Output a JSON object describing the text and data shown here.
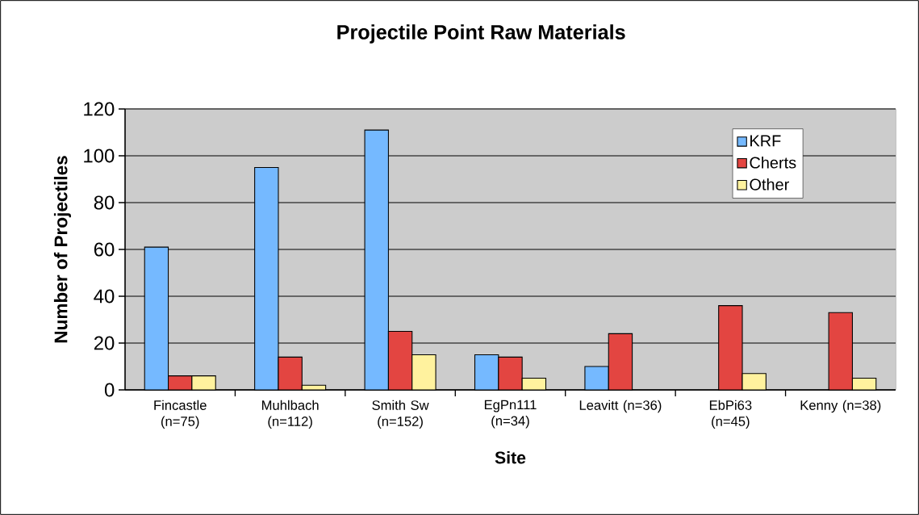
{
  "chart_data": {
    "type": "bar",
    "title": "Projectile Point Raw Materials",
    "xlabel": "Site",
    "ylabel": "Number of Projectiles",
    "categories": [
      "Fincastle (n=75)",
      "Muhlbach (n=112)",
      "Smith Sw (n=152)",
      "EgPn111 (n=34)",
      "Leavitt (n=36)",
      "EbPi63 (n=45)",
      "Kenny (n=38)"
    ],
    "series": [
      {
        "name": "KRF",
        "color": "#75b9ff",
        "values": [
          61,
          95,
          111,
          15,
          10,
          0,
          0
        ]
      },
      {
        "name": "Cherts",
        "color": "#e34541",
        "values": [
          6,
          14,
          25,
          14,
          24,
          36,
          33
        ]
      },
      {
        "name": "Other",
        "color": "#fff29e",
        "values": [
          6,
          2,
          15,
          5,
          0,
          7,
          5
        ]
      }
    ],
    "ylim": [
      0,
      120
    ],
    "yticks": [
      0,
      20,
      40,
      60,
      80,
      100,
      120
    ],
    "grid": "y",
    "legend": "top right"
  }
}
